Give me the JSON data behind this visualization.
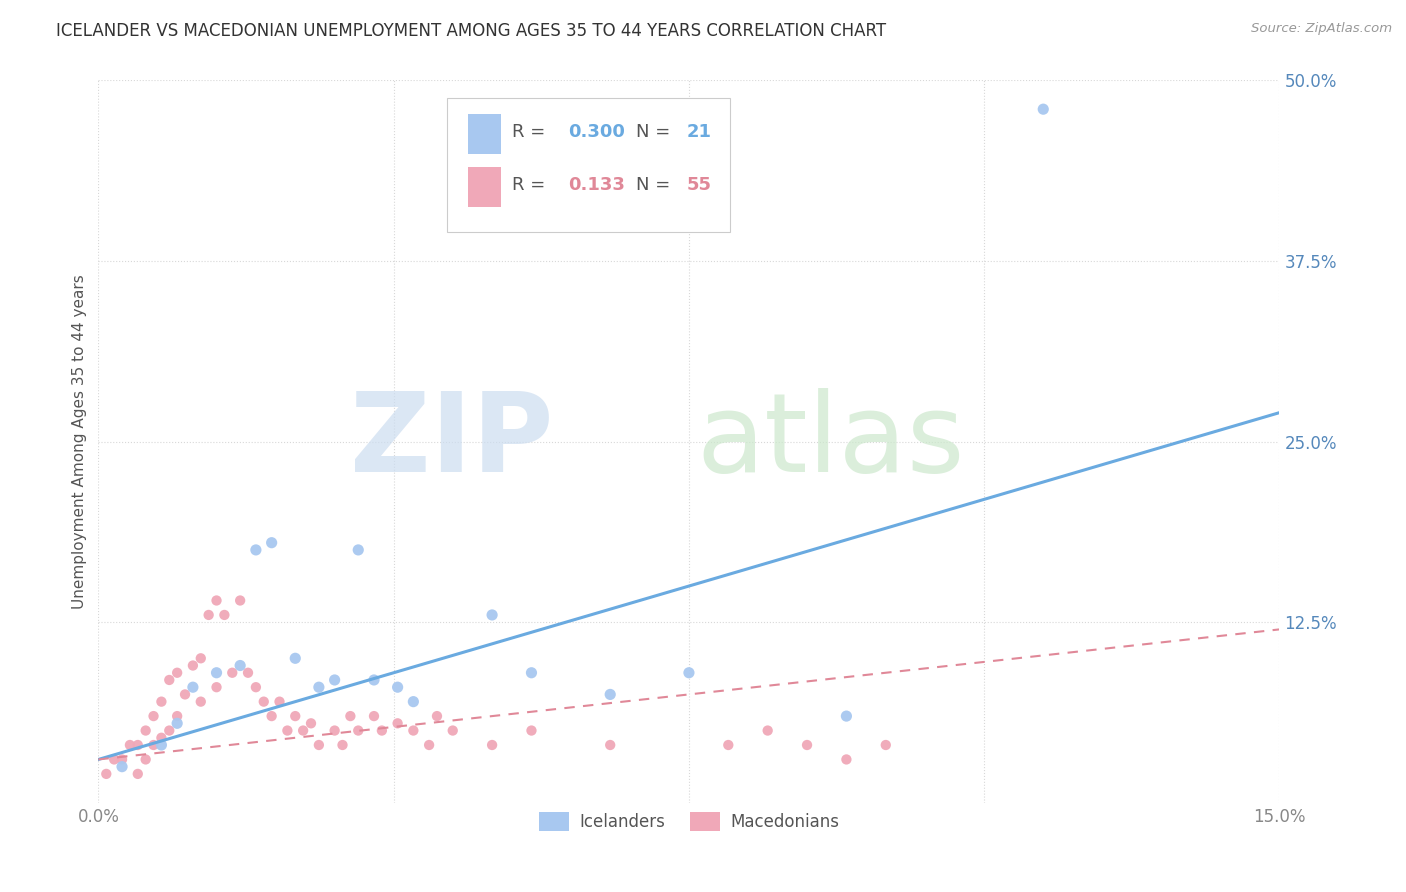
{
  "title": "ICELANDER VS MACEDONIAN UNEMPLOYMENT AMONG AGES 35 TO 44 YEARS CORRELATION CHART",
  "source": "Source: ZipAtlas.com",
  "ylabel": "Unemployment Among Ages 35 to 44 years",
  "xlim": [
    0.0,
    0.15
  ],
  "ylim": [
    0.0,
    0.5
  ],
  "yticks": [
    0.0,
    0.125,
    0.25,
    0.375,
    0.5
  ],
  "ytick_labels": [
    "",
    "12.5%",
    "25.0%",
    "37.5%",
    "50.0%"
  ],
  "xticks": [
    0.0,
    0.0375,
    0.075,
    0.1125,
    0.15
  ],
  "xtick_labels": [
    "0.0%",
    "",
    "",
    "",
    "15.0%"
  ],
  "icelander_R": 0.3,
  "icelander_N": 21,
  "macedonian_R": 0.133,
  "macedonian_N": 55,
  "icelander_color": "#a8c8f0",
  "macedonian_color": "#f0a8b8",
  "icelander_line_color": "#6aaae0",
  "macedonian_line_color": "#e08898",
  "background_color": "#ffffff",
  "grid_color": "#d8d8d8",
  "icelander_scatter_x": [
    0.003,
    0.008,
    0.01,
    0.012,
    0.015,
    0.018,
    0.02,
    0.022,
    0.025,
    0.028,
    0.03,
    0.033,
    0.035,
    0.038,
    0.04,
    0.05,
    0.055,
    0.065,
    0.075,
    0.095,
    0.12
  ],
  "icelander_scatter_y": [
    0.025,
    0.04,
    0.055,
    0.08,
    0.09,
    0.095,
    0.175,
    0.18,
    0.1,
    0.08,
    0.085,
    0.175,
    0.085,
    0.08,
    0.07,
    0.13,
    0.09,
    0.075,
    0.09,
    0.06,
    0.48
  ],
  "macedonian_scatter_x": [
    0.001,
    0.002,
    0.003,
    0.004,
    0.005,
    0.005,
    0.006,
    0.006,
    0.007,
    0.007,
    0.008,
    0.008,
    0.009,
    0.009,
    0.01,
    0.01,
    0.011,
    0.012,
    0.013,
    0.013,
    0.014,
    0.015,
    0.015,
    0.016,
    0.017,
    0.018,
    0.019,
    0.02,
    0.021,
    0.022,
    0.023,
    0.024,
    0.025,
    0.026,
    0.027,
    0.028,
    0.03,
    0.031,
    0.032,
    0.033,
    0.035,
    0.036,
    0.038,
    0.04,
    0.042,
    0.043,
    0.045,
    0.05,
    0.055,
    0.065,
    0.08,
    0.085,
    0.09,
    0.095,
    0.1
  ],
  "macedonian_scatter_y": [
    0.02,
    0.03,
    0.03,
    0.04,
    0.04,
    0.02,
    0.05,
    0.03,
    0.06,
    0.04,
    0.07,
    0.045,
    0.085,
    0.05,
    0.09,
    0.06,
    0.075,
    0.095,
    0.1,
    0.07,
    0.13,
    0.14,
    0.08,
    0.13,
    0.09,
    0.14,
    0.09,
    0.08,
    0.07,
    0.06,
    0.07,
    0.05,
    0.06,
    0.05,
    0.055,
    0.04,
    0.05,
    0.04,
    0.06,
    0.05,
    0.06,
    0.05,
    0.055,
    0.05,
    0.04,
    0.06,
    0.05,
    0.04,
    0.05,
    0.04,
    0.04,
    0.05,
    0.04,
    0.03,
    0.04
  ],
  "icelander_trend_x": [
    0.0,
    0.15
  ],
  "icelander_trend_y": [
    0.03,
    0.27
  ],
  "macedonian_trend_x": [
    0.0,
    0.15
  ],
  "macedonian_trend_y": [
    0.03,
    0.12
  ]
}
